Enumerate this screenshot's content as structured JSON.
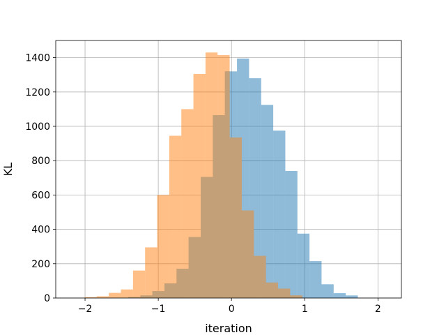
{
  "chart_data": {
    "type": "bar",
    "title": "",
    "xlabel": "iteration",
    "ylabel": "KL",
    "xlim": [
      -2.4,
      2.32
    ],
    "ylim": [
      0,
      1500
    ],
    "xticks": [
      -2,
      -1,
      0,
      1,
      2
    ],
    "xtick_labels": [
      "−2",
      "−1",
      "0",
      "1",
      "2"
    ],
    "yticks": [
      0,
      200,
      400,
      600,
      800,
      1000,
      1200,
      1400
    ],
    "ytick_labels": [
      "0",
      "200",
      "400",
      "600",
      "800",
      "1000",
      "1200",
      "1400"
    ],
    "grid": true,
    "legend": false,
    "series": [
      {
        "color": "#1f77b4",
        "opacity": 0.5,
        "bin_edges": [
          -1.575,
          -1.41,
          -1.245,
          -1.08,
          -0.915,
          -0.75,
          -0.585,
          -0.42,
          -0.255,
          -0.09,
          0.075,
          0.24,
          0.405,
          0.57,
          0.735,
          0.9,
          1.065,
          1.23,
          1.395,
          1.56,
          1.725
        ],
        "counts": [
          2,
          5,
          15,
          40,
          85,
          170,
          355,
          705,
          1065,
          1320,
          1395,
          1280,
          1125,
          975,
          740,
          375,
          215,
          80,
          28,
          15
        ]
      },
      {
        "color": "#ff7f0e",
        "opacity": 0.5,
        "bin_edges": [
          -2.005,
          -1.84,
          -1.675,
          -1.51,
          -1.345,
          -1.18,
          -1.015,
          -0.85,
          -0.685,
          -0.52,
          -0.355,
          -0.19,
          -0.025,
          0.14,
          0.305,
          0.47,
          0.635,
          0.8,
          0.965
        ],
        "counts": [
          5,
          10,
          30,
          50,
          160,
          295,
          600,
          945,
          1100,
          1305,
          1430,
          1415,
          935,
          510,
          245,
          90,
          55,
          15
        ]
      }
    ],
    "overlap_color": "#c4a079"
  }
}
